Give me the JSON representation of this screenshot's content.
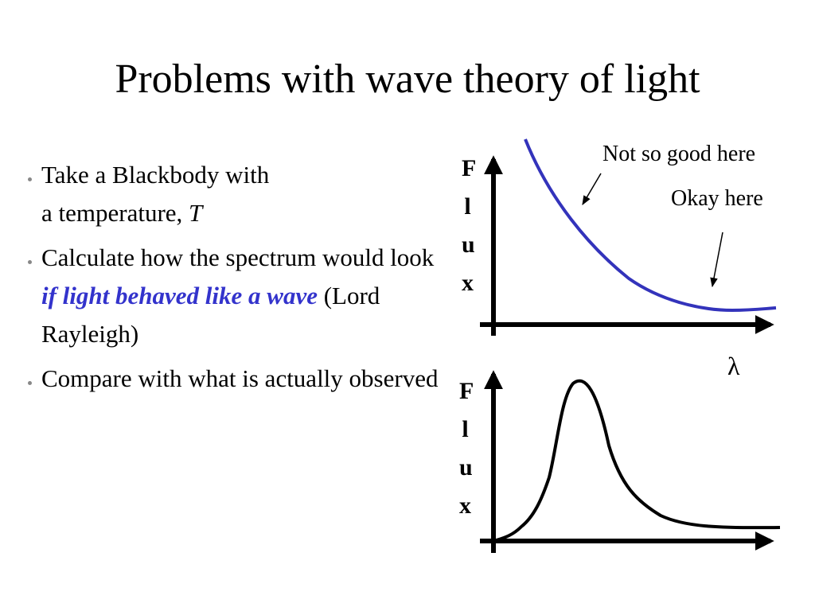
{
  "title": "Problems with wave theory of light",
  "bullets": [
    {
      "runs": [
        "Take a Blackbody with",
        "a temperature, ",
        "T"
      ]
    },
    {
      "runs": [
        "Calculate how the spectrum would look ",
        "if light behaved like a wave",
        " (Lord Rayleigh)"
      ]
    },
    {
      "runs": [
        "Compare with what is actually observed"
      ]
    }
  ],
  "top_plot": {
    "y_label": "Flux",
    "x_label": "λ",
    "annotations": [
      "Not so good here",
      "Okay here"
    ]
  },
  "bottom_plot": {
    "y_label": "Flux"
  }
}
